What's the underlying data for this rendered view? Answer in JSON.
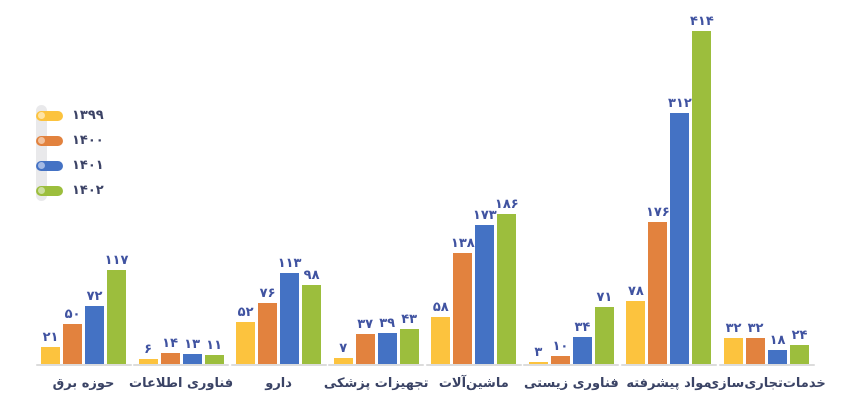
{
  "chart_data": {
    "type": "bar",
    "grid": false,
    "legend_position": "middle-left",
    "ylim": [
      0,
      414
    ],
    "value_labels_shown": true,
    "categories_visual_order": "left-to-right",
    "categories": [
      "حوزه برق",
      "فناوری اطلاعات",
      "دارو",
      "تجهیزات پزشکی",
      "ماشین‌آلات",
      "فناوری زیستی",
      "مواد پیشرفته",
      "خدمات‌تجاری‌سازی"
    ],
    "series": [
      {
        "name": "۱۳۹۹",
        "color": "#FCC33E",
        "knob_color": "#FEE3A4",
        "values": [
          21,
          6,
          52,
          7,
          58,
          3,
          78,
          32
        ],
        "value_labels": [
          "۲۱",
          "۶",
          "۵۲",
          "۷",
          "۵۸",
          "۳",
          "۷۸",
          "۳۲"
        ]
      },
      {
        "name": "۱۴۰۰",
        "color": "#E2823E",
        "knob_color": "#F2C29E",
        "values": [
          50,
          14,
          76,
          37,
          138,
          10,
          176,
          32
        ],
        "value_labels": [
          "۵۰",
          "۱۴",
          "۷۶",
          "۳۷",
          "۱۳۸",
          "۱۰",
          "۱۷۶",
          "۳۲"
        ]
      },
      {
        "name": "۱۴۰۱",
        "color": "#4472C4",
        "knob_color": "#A3B9E4",
        "values": [
          72,
          13,
          113,
          39,
          173,
          34,
          312,
          18
        ],
        "value_labels": [
          "۷۲",
          "۱۳",
          "۱۱۳",
          "۳۹",
          "۱۷۳",
          "۳۴",
          "۳۱۲",
          "۱۸"
        ]
      },
      {
        "name": "۱۴۰۲",
        "color": "#9CBE3D",
        "knob_color": "#CCDE9E",
        "values": [
          117,
          11,
          98,
          43,
          186,
          71,
          414,
          24
        ],
        "value_labels": [
          "۱۱۷",
          "۱۱",
          "۹۸",
          "۴۳",
          "۱۸۶",
          "۷۱",
          "۴۱۴",
          "۲۴"
        ]
      }
    ],
    "style": {
      "value_label_color": "#4053A1",
      "category_label_color": "#3A4365",
      "legend_text_color": "#3C4366",
      "baseline_color": "#DCDCDC",
      "legend_track_color": "#E9E9EB"
    }
  }
}
